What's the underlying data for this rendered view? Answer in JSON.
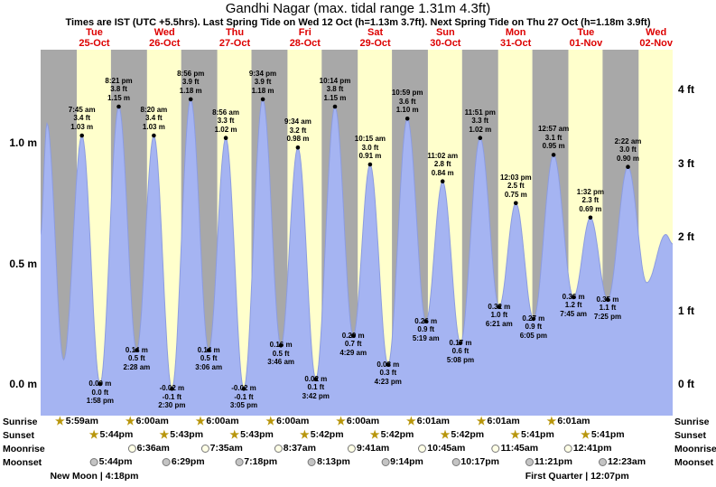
{
  "title": "Gandhi Nagar (max. tidal range 1.31m 4.3ft)",
  "subtitle": "Times are IST (UTC +5.5hrs). Last Spring Tide on Wed 12 Oct (h=1.13m 3.7ft). Next Spring Tide on Thu 27 Oct (h=1.18m 3.9ft)",
  "colors": {
    "red": "#dd0000",
    "day_band": "#ffffcc",
    "night_band": "#a8a8a8",
    "tide_fill": "#a5b4f2",
    "tide_stroke": "#8c9ce0",
    "star": "#b8960c",
    "moonrise_fill": "#ffffe6",
    "moonset_fill": "#c4c4c4"
  },
  "days": [
    {
      "name": "Tue",
      "date": "25-Oct"
    },
    {
      "name": "Wed",
      "date": "26-Oct"
    },
    {
      "name": "Thu",
      "date": "27-Oct"
    },
    {
      "name": "Fri",
      "date": "28-Oct"
    },
    {
      "name": "Sat",
      "date": "29-Oct"
    },
    {
      "name": "Sun",
      "date": "30-Oct"
    },
    {
      "name": "Mon",
      "date": "31-Oct"
    },
    {
      "name": "Tue",
      "date": "01-Nov"
    },
    {
      "name": "Wed",
      "date": "02-Nov"
    }
  ],
  "axis": {
    "left": [
      {
        "label": "1.0 m",
        "h": 1.0
      },
      {
        "label": "0.5 m",
        "h": 0.5
      },
      {
        "label": "0.0 m",
        "h": 0.0
      }
    ],
    "right": [
      {
        "label": "4 ft",
        "h": 1.2192
      },
      {
        "label": "3 ft",
        "h": 0.9144
      },
      {
        "label": "2 ft",
        "h": 0.6096
      },
      {
        "label": "1 ft",
        "h": 0.3048
      },
      {
        "label": "0 ft",
        "h": 0.0
      }
    ]
  },
  "chart_data": {
    "type": "area",
    "title": "Gandhi Nagar tide heights",
    "x_axis": "t = hours since Tue 25-Oct 00:00 IST; chart window runs from Mon 24-Oct evening to Wed 02-Nov evening",
    "y_left_label": "m",
    "y_right_label": "ft",
    "y_left_ticks": [
      0.0,
      0.5,
      1.0
    ],
    "y_right_ticks": [
      0,
      1,
      2,
      3,
      4
    ],
    "max_tidal_range": "1.31m 4.3ft",
    "points": [
      {
        "t": -6.4,
        "h": 0.62
      },
      {
        "t": -4.2,
        "h": 1.08
      },
      {
        "t": 1.5,
        "h": 0.1
      },
      {
        "t": 7.75,
        "h": 1.03,
        "kind": "high",
        "time": "7:45 am",
        "ft": "3.4 ft",
        "m": "1.03 m"
      },
      {
        "t": 13.97,
        "h": 0.0,
        "kind": "low",
        "time": "1:58 pm",
        "ft": "0.0 ft",
        "m": "0.00 m"
      },
      {
        "t": 20.35,
        "h": 1.15,
        "kind": "high",
        "time": "8:21 pm",
        "ft": "3.8 ft",
        "m": "1.15 m"
      },
      {
        "t": 26.47,
        "h": 0.14,
        "kind": "low",
        "time": "2:28 am",
        "ft": "0.5 ft",
        "m": "0.14 m"
      },
      {
        "t": 32.33,
        "h": 1.03,
        "kind": "high",
        "time": "8:20 am",
        "ft": "3.4 ft",
        "m": "1.03 m"
      },
      {
        "t": 38.5,
        "h": -0.02,
        "kind": "low",
        "time": "2:30 pm",
        "ft": "-0.1 ft",
        "m": "-0.02 m"
      },
      {
        "t": 44.93,
        "h": 1.18,
        "kind": "high",
        "time": "8:56 pm",
        "ft": "3.9 ft",
        "m": "1.18 m"
      },
      {
        "t": 51.1,
        "h": 0.14,
        "kind": "low",
        "time": "3:06 am",
        "ft": "0.5 ft",
        "m": "0.14 m"
      },
      {
        "t": 56.93,
        "h": 1.02,
        "kind": "high",
        "time": "8:56 am",
        "ft": "3.3 ft",
        "m": "1.02 m"
      },
      {
        "t": 63.08,
        "h": -0.02,
        "kind": "low",
        "time": "3:05 pm",
        "ft": "-0.1 ft",
        "m": "-0.02 m"
      },
      {
        "t": 69.57,
        "h": 1.18,
        "kind": "high",
        "time": "9:34 pm",
        "ft": "3.9 ft",
        "m": "1.18 m"
      },
      {
        "t": 75.77,
        "h": 0.16,
        "kind": "low",
        "time": "3:46 am",
        "ft": "0.5 ft",
        "m": "0.16 m"
      },
      {
        "t": 81.57,
        "h": 0.98,
        "kind": "high",
        "time": "9:34 am",
        "ft": "3.2 ft",
        "m": "0.98 m"
      },
      {
        "t": 87.7,
        "h": 0.02,
        "kind": "low",
        "time": "3:42 pm",
        "ft": "0.1 ft",
        "m": "0.02 m"
      },
      {
        "t": 94.23,
        "h": 1.15,
        "kind": "high",
        "time": "10:14 pm",
        "ft": "3.8 ft",
        "m": "1.15 m"
      },
      {
        "t": 100.48,
        "h": 0.2,
        "kind": "low",
        "time": "4:29 am",
        "ft": "0.7 ft",
        "m": "0.20 m"
      },
      {
        "t": 106.25,
        "h": 0.91,
        "kind": "high",
        "time": "10:15 am",
        "ft": "3.0 ft",
        "m": "0.91 m"
      },
      {
        "t": 112.38,
        "h": 0.08,
        "kind": "low",
        "time": "4:23 pm",
        "ft": "0.3 ft",
        "m": "0.08 m"
      },
      {
        "t": 118.98,
        "h": 1.1,
        "kind": "high",
        "time": "10:59 pm",
        "ft": "3.6 ft",
        "m": "1.10 m"
      },
      {
        "t": 125.32,
        "h": 0.26,
        "kind": "low",
        "time": "5:19 am",
        "ft": "0.9 ft",
        "m": "0.26 m"
      },
      {
        "t": 131.03,
        "h": 0.84,
        "kind": "high",
        "time": "11:02 am",
        "ft": "2.8 ft",
        "m": "0.84 m"
      },
      {
        "t": 137.13,
        "h": 0.17,
        "kind": "low",
        "time": "5:08 pm",
        "ft": "0.6 ft",
        "m": "0.17 m"
      },
      {
        "t": 143.85,
        "h": 1.02,
        "kind": "high",
        "time": "11:51 pm",
        "ft": "3.3 ft",
        "m": "1.02 m"
      },
      {
        "t": 150.35,
        "h": 0.32,
        "kind": "low",
        "time": "6:21 am",
        "ft": "1.0 ft",
        "m": "0.32 m"
      },
      {
        "t": 156.05,
        "h": 0.75,
        "kind": "high",
        "time": "12:03 pm",
        "ft": "2.5 ft",
        "m": "0.75 m"
      },
      {
        "t": 162.08,
        "h": 0.27,
        "kind": "low",
        "time": "6:05 pm",
        "ft": "0.9 ft",
        "m": "0.27 m"
      },
      {
        "t": 168.95,
        "h": 0.95,
        "kind": "high",
        "time": "12:57 am",
        "ft": "3.1 ft",
        "m": "0.95 m"
      },
      {
        "t": 175.75,
        "h": 0.36,
        "kind": "low",
        "time": "7:45 am",
        "ft": "1.2 ft",
        "m": "0.36 m"
      },
      {
        "t": 181.53,
        "h": 0.69,
        "kind": "high",
        "time": "1:32 pm",
        "ft": "2.3 ft",
        "m": "0.69 m"
      },
      {
        "t": 187.42,
        "h": 0.35,
        "kind": "low",
        "time": "7:25 pm",
        "ft": "1.1 ft",
        "m": "0.35 m"
      },
      {
        "t": 194.37,
        "h": 0.9,
        "kind": "high",
        "time": "2:22 am",
        "ft": "3.0 ft",
        "m": "0.90 m"
      },
      {
        "t": 200.8,
        "h": 0.42
      },
      {
        "t": 207.3,
        "h": 0.62
      },
      {
        "t": 209.7,
        "h": 0.58
      }
    ]
  },
  "icons": {
    "sunrise-star": "★",
    "sunset-star": "★"
  },
  "astro": {
    "rows": [
      {
        "label": "Sunrise",
        "icon": "sunrise-star",
        "entries": [
          {
            "t": 5.98,
            "time": "5:59am"
          },
          {
            "t": 30.0,
            "time": "6:00am"
          },
          {
            "t": 54.0,
            "time": "6:00am"
          },
          {
            "t": 78.0,
            "time": "6:00am"
          },
          {
            "t": 102.0,
            "time": "6:00am"
          },
          {
            "t": 126.02,
            "time": "6:01am"
          },
          {
            "t": 150.02,
            "time": "6:01am"
          },
          {
            "t": 174.02,
            "time": "6:01am"
          }
        ]
      },
      {
        "label": "Sunset",
        "icon": "sunset-star",
        "entries": [
          {
            "t": 17.73,
            "time": "5:44pm"
          },
          {
            "t": 41.72,
            "time": "5:43pm"
          },
          {
            "t": 65.72,
            "time": "5:43pm"
          },
          {
            "t": 89.7,
            "time": "5:42pm"
          },
          {
            "t": 113.7,
            "time": "5:42pm"
          },
          {
            "t": 137.7,
            "time": "5:42pm"
          },
          {
            "t": 161.68,
            "time": "5:41pm"
          },
          {
            "t": 185.68,
            "time": "5:41pm"
          }
        ]
      },
      {
        "label": "Moonrise",
        "icon": "moonrise-circle",
        "entries": [
          {
            "t": 30.6,
            "time": "6:36am"
          },
          {
            "t": 55.58,
            "time": "7:35am"
          },
          {
            "t": 80.62,
            "time": "8:37am"
          },
          {
            "t": 105.68,
            "time": "9:41am"
          },
          {
            "t": 130.75,
            "time": "10:45am"
          },
          {
            "t": 155.75,
            "time": "11:45am"
          },
          {
            "t": 180.68,
            "time": "12:41pm"
          }
        ]
      },
      {
        "label": "Moonset",
        "icon": "moonset-circle",
        "entries": [
          {
            "t": 17.73,
            "time": "5:44pm"
          },
          {
            "t": 42.48,
            "time": "6:29pm"
          },
          {
            "t": 67.3,
            "time": "7:18pm"
          },
          {
            "t": 92.22,
            "time": "8:13pm"
          },
          {
            "t": 117.23,
            "time": "9:14pm"
          },
          {
            "t": 142.28,
            "time": "10:17pm"
          },
          {
            "t": 167.35,
            "time": "11:21pm"
          },
          {
            "t": 192.38,
            "time": "12:23am"
          }
        ]
      }
    ],
    "phases": [
      {
        "t": 12,
        "text": "New Moon | 4:18pm"
      },
      {
        "t": 177,
        "text": "First Quarter | 12:07pm"
      }
    ]
  }
}
